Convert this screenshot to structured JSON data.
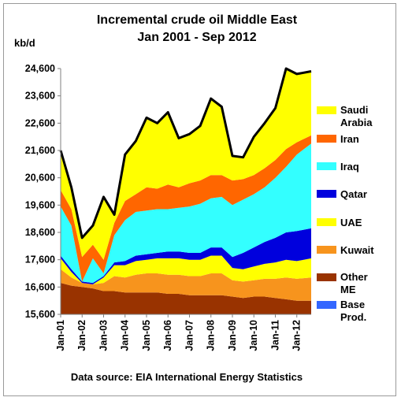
{
  "chart_data": {
    "type": "area",
    "title": [
      "Incremental crude oil Middle East",
      "Jan 2001 - Sep 2012"
    ],
    "ylabel": "kb/d",
    "source": "Data source: EIA International Energy Statistics",
    "ylim": [
      15600,
      24600
    ],
    "yticks": [
      15600,
      16600,
      17600,
      18600,
      19600,
      20600,
      21600,
      22600,
      23600,
      24600
    ],
    "ytick_labels": [
      "15,600",
      "16,600",
      "17,600",
      "18,600",
      "19,600",
      "20,600",
      "21,600",
      "22,600",
      "23,600",
      "24,600"
    ],
    "x": [
      2001.0,
      2001.5,
      2002.0,
      2002.5,
      2003.0,
      2003.5,
      2004.0,
      2004.5,
      2005.0,
      2005.5,
      2006.0,
      2006.5,
      2007.0,
      2007.5,
      2008.0,
      2008.5,
      2009.0,
      2009.5,
      2010.0,
      2010.5,
      2011.0,
      2011.5,
      2012.0,
      2012.67
    ],
    "xlim": [
      2001.0,
      2012.67
    ],
    "xticks": [
      2001,
      2002,
      2003,
      2004,
      2005,
      2006,
      2007,
      2008,
      2009,
      2010,
      2011,
      2012
    ],
    "xtick_labels": [
      "Jan-01",
      "Jan-02",
      "Jan-03",
      "Jan-04",
      "Jan-05",
      "Jan-06",
      "Jan-07",
      "Jan-08",
      "Jan-09",
      "Jan-10",
      "Jan-11",
      "Jan-12"
    ],
    "series": [
      {
        "name": "Base Prod.",
        "color": "#3366ff",
        "values": [
          15600,
          15600,
          15600,
          15600,
          15600,
          15600,
          15600,
          15600,
          15600,
          15600,
          15600,
          15600,
          15600,
          15600,
          15600,
          15600,
          15600,
          15600,
          15600,
          15600,
          15600,
          15600,
          15600,
          15600
        ]
      },
      {
        "name": "Other ME",
        "color": "#993300",
        "values": [
          1150,
          1050,
          1000,
          950,
          850,
          850,
          800,
          800,
          800,
          800,
          750,
          750,
          700,
          700,
          700,
          700,
          650,
          600,
          650,
          650,
          600,
          550,
          500,
          500
        ]
      },
      {
        "name": "Kuwait",
        "color": "#f7941d",
        "values": [
          500,
          300,
          150,
          150,
          300,
          550,
          550,
          650,
          700,
          700,
          700,
          700,
          700,
          700,
          800,
          800,
          600,
          600,
          600,
          650,
          700,
          800,
          800,
          850
        ]
      },
      {
        "name": "UAE",
        "color": "#ffff00",
        "values": [
          400,
          200,
          0,
          0,
          200,
          400,
          450,
          500,
          500,
          550,
          600,
          600,
          600,
          600,
          650,
          650,
          450,
          450,
          500,
          550,
          600,
          650,
          650,
          700
        ]
      },
      {
        "name": "Qatar",
        "color": "#0000dd",
        "values": [
          100,
          100,
          50,
          50,
          50,
          100,
          150,
          200,
          200,
          200,
          250,
          250,
          250,
          250,
          300,
          300,
          400,
          600,
          700,
          800,
          900,
          1000,
          1100,
          1100
        ]
      },
      {
        "name": "Iraq",
        "color": "#33ffff",
        "values": [
          1800,
          1600,
          0,
          900,
          100,
          1000,
          1500,
          1600,
          1600,
          1600,
          1550,
          1600,
          1700,
          1800,
          1800,
          1850,
          1900,
          1950,
          1950,
          2000,
          2200,
          2400,
          2800,
          3100
        ]
      },
      {
        "name": "Iran",
        "color": "#ff6600",
        "values": [
          600,
          600,
          900,
          500,
          500,
          450,
          700,
          650,
          850,
          750,
          900,
          750,
          850,
          850,
          850,
          800,
          900,
          750,
          700,
          700,
          650,
          650,
          450,
          300
        ]
      },
      {
        "name": "Saudi Arabia",
        "color": "#ffff00",
        "values": [
          1450,
          800,
          700,
          700,
          2300,
          300,
          1700,
          1950,
          2550,
          2400,
          2650,
          1800,
          1800,
          2000,
          2800,
          2500,
          900,
          800,
          1400,
          1650,
          1900,
          2950,
          2500,
          2350
        ]
      }
    ],
    "total_color": "#000000",
    "legend": "right"
  }
}
